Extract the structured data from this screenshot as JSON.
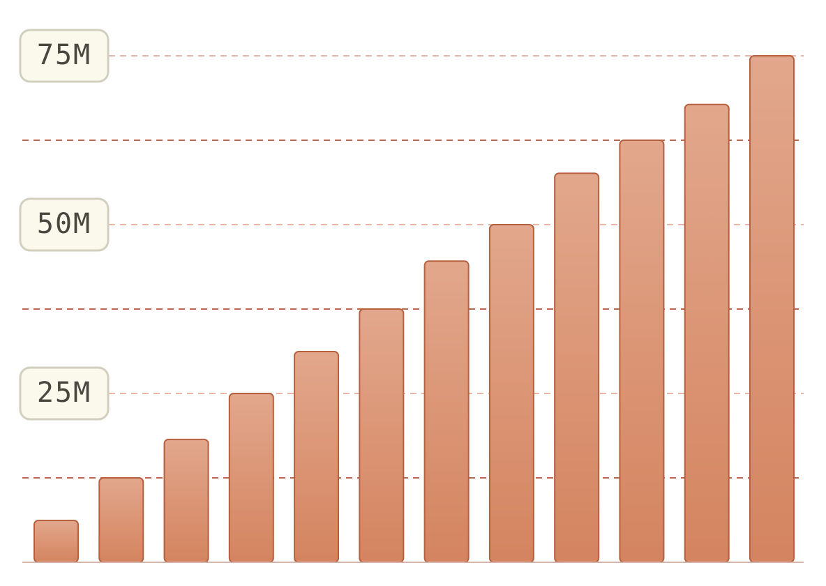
{
  "chart_data": {
    "type": "bar",
    "title": "",
    "xlabel": "",
    "ylabel": "",
    "ylim": [
      0,
      75
    ],
    "y_unit_suffix": "M",
    "yticks": [
      25,
      50,
      75
    ],
    "ytick_labels": [
      "25M",
      "50M",
      "75M"
    ],
    "minor_gridlines": [
      12.5,
      37.5,
      62.5
    ],
    "grid": true,
    "values": [
      6.2,
      12.5,
      18.2,
      25,
      31.2,
      37.5,
      44.6,
      50,
      57.6,
      62.5,
      67.8,
      75
    ]
  },
  "colors": {
    "bar_fill_top": "#e2a78c",
    "bar_fill_bottom": "#d4845f",
    "bar_stroke": "#b6603f",
    "major_grid": "#e6b7a8",
    "minor_grid": "#b9674b",
    "label_box_fill": "#fbf8ec",
    "label_box_stroke": "#d2cfbf",
    "baseline": "#d6b4aa"
  }
}
